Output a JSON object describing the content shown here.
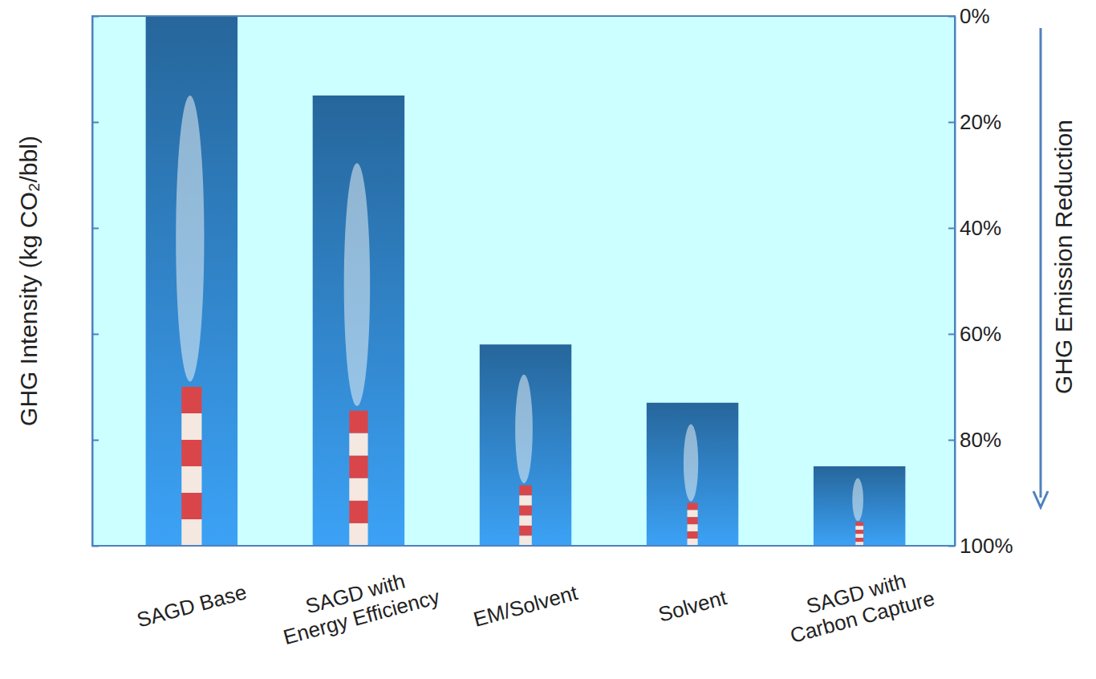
{
  "chart_data": {
    "type": "bar",
    "categories": [
      "SAGD Base",
      "SAGD with Energy Efficiency",
      "EM/Solvent",
      "Solvent",
      "SAGD with Carbon Capture"
    ],
    "values": [
      0,
      15,
      62,
      73,
      85
    ],
    "color": "#2f7ec0",
    "ylabel": "GHG Intensity (kg CO₂/bbl)",
    "y2label": "GHG Emission Reduction",
    "ylim": [
      100,
      0
    ],
    "yticks": [
      {
        "value": 0,
        "label": "0%"
      },
      {
        "value": 20,
        "label": "20%"
      },
      {
        "value": 40,
        "label": "40%"
      },
      {
        "value": 60,
        "label": "60%"
      },
      {
        "value": 80,
        "label": "80%"
      },
      {
        "value": 100,
        "label": "100%"
      }
    ]
  }
}
